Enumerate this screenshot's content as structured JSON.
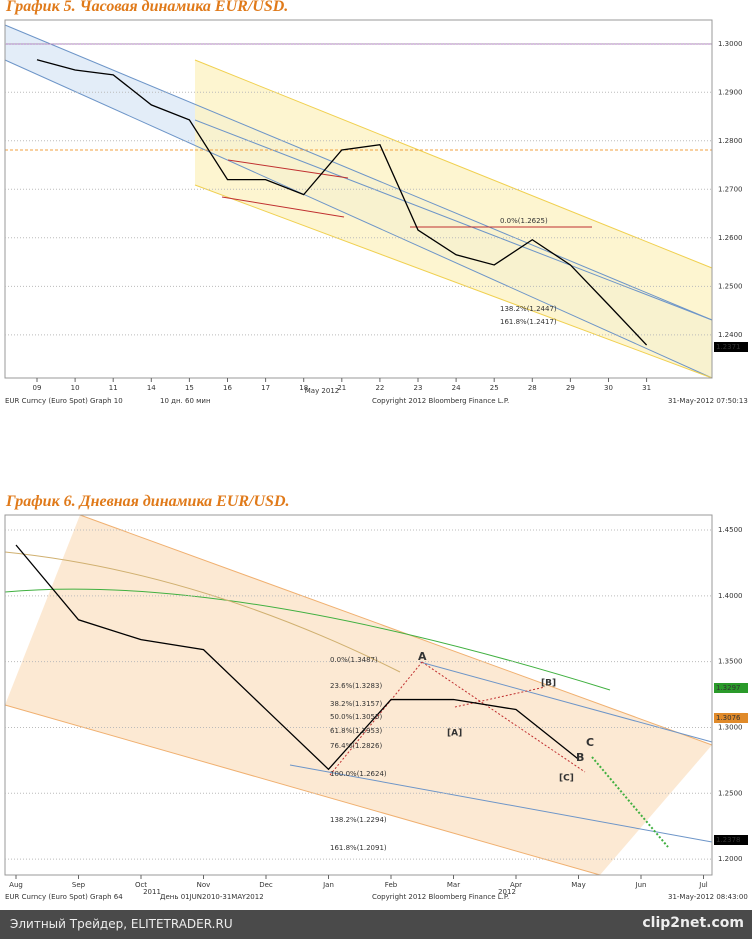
{
  "chart_data": [
    {
      "type": "line",
      "title": "График 5.   Часовая динамика EUR/USD.",
      "x_label": "May 2012",
      "categories": [
        "09",
        "10",
        "11",
        "14",
        "15",
        "16",
        "17",
        "18",
        "21",
        "22",
        "23",
        "24",
        "25",
        "28",
        "29",
        "30",
        "31"
      ],
      "series": [
        {
          "name": "EUR Curncy",
          "color": "#000000",
          "values": [
            1.2967,
            1.2946,
            1.2936,
            1.2874,
            1.2843,
            1.272,
            1.272,
            1.2689,
            1.2781,
            1.2792,
            1.2616,
            1.2565,
            1.2544,
            1.2596,
            1.2544,
            1.2462,
            1.2379
          ]
        }
      ],
      "ylim": [
        1.2311,
        1.3049
      ],
      "yticks": [
        {
          "value": 1.3,
          "label": "1.3000"
        },
        {
          "value": 1.29,
          "label": "1.2900"
        },
        {
          "value": 1.28,
          "label": "1.2800"
        },
        {
          "value": 1.27,
          "label": "1.2700"
        },
        {
          "value": 1.26,
          "label": "1.2600"
        },
        {
          "value": 1.25,
          "label": "1.2500"
        },
        {
          "value": 1.24,
          "label": "1.2400"
        }
      ],
      "grid": true,
      "annotations": [
        "1.2371",
        "0.0%(1.2625)",
        "138.2%(1.2447)",
        "161.8%(1.2417)"
      ],
      "footer": [
        "EUR Curncy (Euro Spot) Graph 10",
        "10 дн. 60 мин",
        "Copyright 2012 Bloomberg Finance L.P.",
        "31-May-2012 07:50:13"
      ]
    },
    {
      "type": "line",
      "title": "График 6.   Дневная динамика EUR/USD.",
      "x_sublabels": [
        "2011",
        "2012"
      ],
      "categories": [
        "Aug",
        "Sep",
        "Oct",
        "Nov",
        "Dec",
        "Jan",
        "Feb",
        "Mar",
        "Apr",
        "May",
        "Jun",
        "Jul"
      ],
      "series": [
        {
          "name": "EUR Curncy",
          "color": "#000000",
          "values": [
            1.4386,
            1.3818,
            1.3667,
            1.3591,
            1.3136,
            1.2682,
            1.3212,
            1.3212,
            1.3136,
            1.2758,
            null,
            null
          ]
        }
      ],
      "ylim": [
        1.1879,
        1.4614
      ],
      "yticks": [
        {
          "value": 1.45,
          "label": "1.4500"
        },
        {
          "value": 1.4,
          "label": "1.4000"
        },
        {
          "value": 1.35,
          "label": "1.3500"
        },
        {
          "value": 1.3,
          "label": "1.3000"
        },
        {
          "value": 1.25,
          "label": "1.2500"
        },
        {
          "value": 1.2,
          "label": "1.2000"
        }
      ],
      "grid": true,
      "annotations": [
        "1.3297",
        "1.3076",
        "1.2378",
        "A",
        "[A]",
        "[B]",
        "C",
        "[C]",
        "B",
        "0.0%(1.3487)",
        "23.6%(1.3283)",
        "38.2%(1.3157)",
        "50.0%(1.3055)",
        "61.8%(1.2953)",
        "76.4%(1.2826)",
        "100.0%(1.2624)",
        "138.2%(1.2294)",
        "161.8%(1.2091)"
      ],
      "footer": [
        "EUR Curncy (Euro Spot) Graph 64",
        "День 01JUN2010-31MAY2012",
        "Copyright 2012 Bloomberg Finance L.P.",
        "31-May-2012 08:43:00"
      ]
    }
  ],
  "footer": {
    "site": "Элитный Трейдер, ELITETRADER.RU",
    "brand": "clip2net.com"
  }
}
